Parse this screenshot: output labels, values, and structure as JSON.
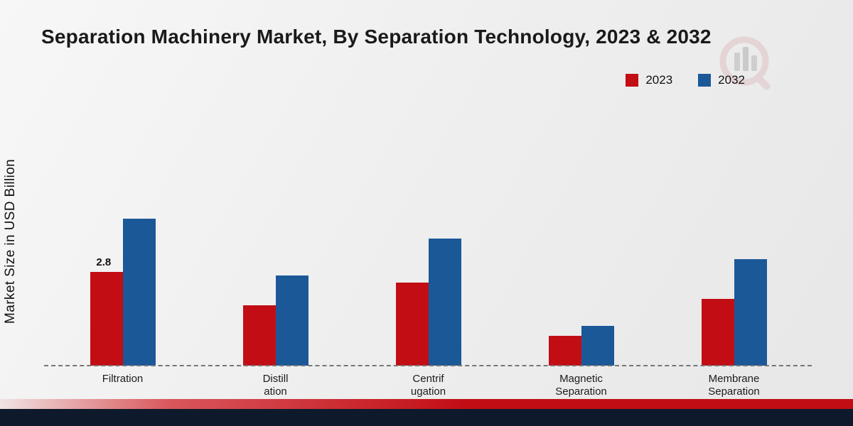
{
  "page": {
    "title": "Separation Machinery Market, By Separation Technology, 2023 & 2032",
    "footer": {
      "red_strip_color": "#c20d15",
      "navy_strip_color": "#0e1a2b"
    }
  },
  "chart_data": {
    "type": "bar",
    "title": "Separation Machinery Market, By Separation Technology, 2023 & 2032",
    "ylabel": "Market Size in USD Billion",
    "xlabel": "",
    "units": "USD Billion",
    "categories": [
      "Filtration",
      "Distillation",
      "Centrifugation",
      "Magnetic Separation",
      "Membrane Separation"
    ],
    "category_label_lines": [
      [
        "Filtration"
      ],
      [
        "Distill",
        "ation"
      ],
      [
        "Centrif",
        "ugation"
      ],
      [
        "Magnetic",
        "Separation"
      ],
      [
        "Membrane",
        "Separation"
      ]
    ],
    "series": [
      {
        "name": "2023",
        "color": "#c20d15",
        "values": [
          2.8,
          1.8,
          2.5,
          0.9,
          2.0
        ]
      },
      {
        "name": "2032",
        "color": "#1b5898",
        "values": [
          4.4,
          2.7,
          3.8,
          1.2,
          3.2
        ]
      }
    ],
    "value_labels": [
      {
        "category_index": 0,
        "series_index": 0,
        "text": "2.8"
      }
    ],
    "ylim": [
      0,
      5
    ],
    "grid": false,
    "baseline_style": "dashed",
    "legend_position": "top-right"
  }
}
